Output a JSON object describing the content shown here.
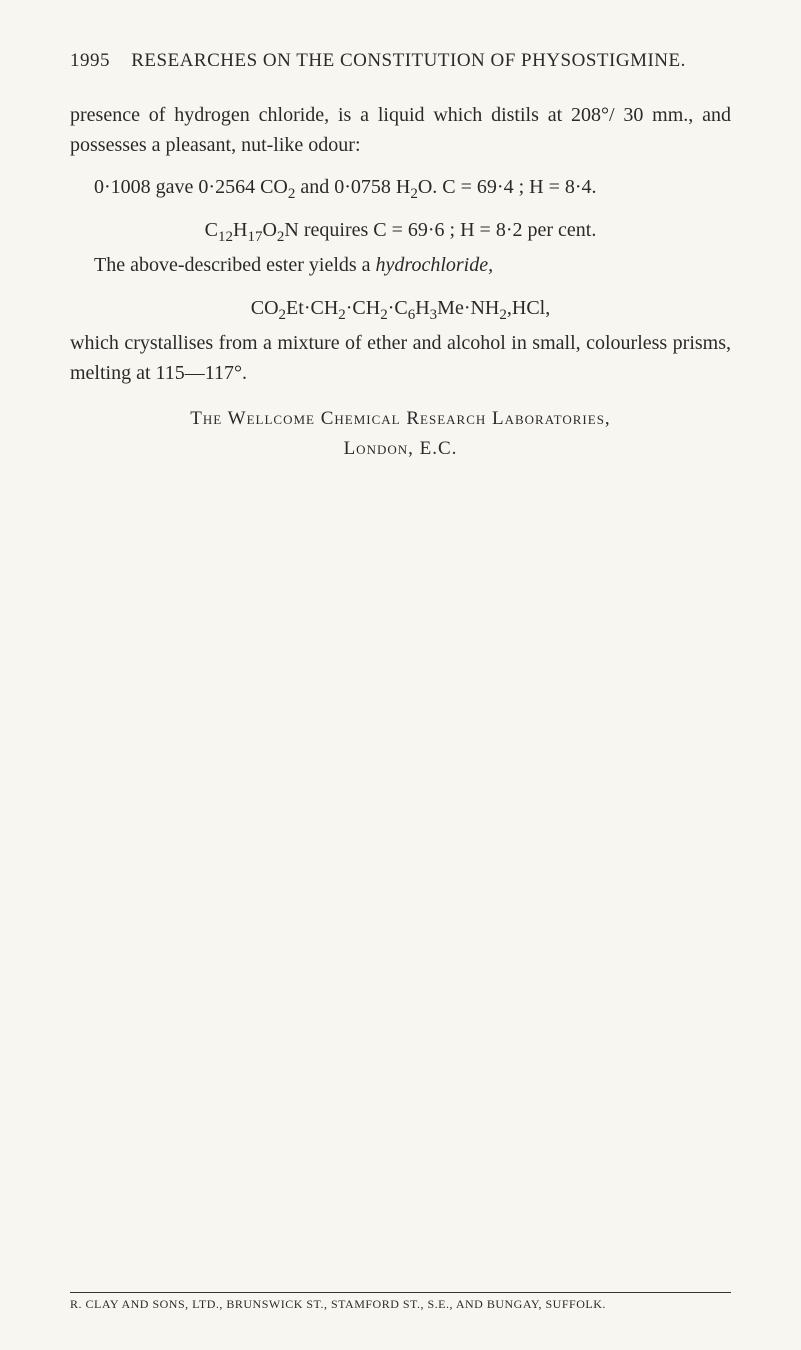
{
  "header": {
    "page_number": "1995",
    "title": "RESEARCHES ON THE CONSTITUTION OF PHYSOSTIGMINE."
  },
  "paragraphs": {
    "p1_a": "presence of hydrogen chloride, is a liquid which distils at 208°/ 30 mm., and possesses a pleasant, nut-like odour:",
    "p2_a": "0·1008 gave 0·2564 CO",
    "p2_b": " and 0·0758 H",
    "p2_c": "O.   C = 69·4 ;  H = 8·4.",
    "p2_d": "C",
    "p2_e": "H",
    "p2_f": "O",
    "p2_g": "N requires C = 69·6 ;  H = 8·2 per cent.",
    "p3_a": "The above-described ester yields a ",
    "p3_italic": "hydrochloride,",
    "p3_formula_a": "CO",
    "p3_formula_b": "Et·CH",
    "p3_formula_c": "·CH",
    "p3_formula_d": "·C",
    "p3_formula_e": "H",
    "p3_formula_f": "Me·NH",
    "p3_formula_g": ",HCl,",
    "p4": "which crystallises from a mixture of ether and alcohol in small, colourless prisms, melting at 115—117°."
  },
  "affiliation": {
    "line1_a": "The Wellcome Chemical Research Laboratories,",
    "line2": "London, E.C."
  },
  "footer": {
    "text": "R. CLAY AND SONS, LTD., BRUNSWICK ST., STAMFORD ST., S.E., AND BUNGAY, SUFFOLK."
  },
  "subscripts": {
    "s2": "2",
    "s3": "3",
    "s6": "6",
    "s12": "12",
    "s17": "17"
  }
}
